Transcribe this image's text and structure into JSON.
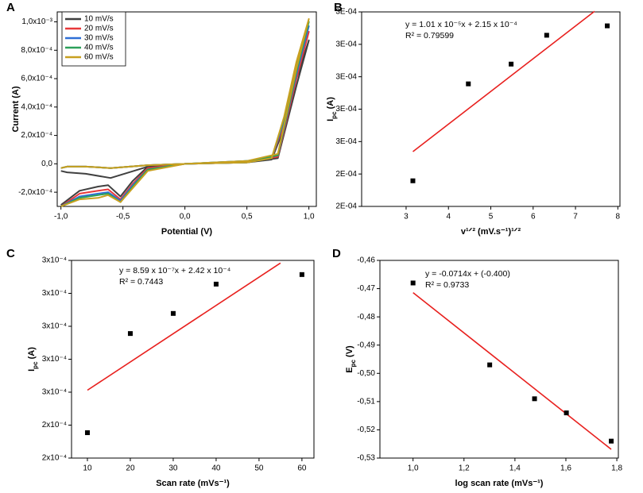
{
  "chart_data": [
    {
      "type": "line",
      "label": "A",
      "xlabel": "Potential (V)",
      "ylabel": "Current (A)",
      "legend": "upper left",
      "x": [
        -1.0,
        -0.95,
        -0.8,
        -0.6,
        -0.3,
        0.0,
        0.5,
        0.7,
        0.8,
        0.9,
        1.0,
        0.9,
        0.75,
        0.5,
        0.0,
        -0.3,
        -0.42,
        -0.52,
        -0.62,
        -0.7,
        -0.85,
        -1.0
      ],
      "series": [
        {
          "name": "10 mV/s",
          "color": "#404040",
          "values": [
            -5e-05,
            -6e-05,
            -7e-05,
            -0.0001,
            -2e-05,
            0.0,
            1e-05,
            3e-05,
            0.00025,
            0.0006,
            0.00087,
            0.00055,
            4e-05,
            1e-05,
            0.0,
            -2e-05,
            -0.00012,
            -0.00023,
            -0.00015,
            -0.00016,
            -0.00019,
            -0.00029
          ]
        },
        {
          "name": "20 mV/s",
          "color": "#e8383a",
          "values": [
            -3e-05,
            -2e-05,
            -2e-05,
            -3e-05,
            -1e-05,
            0.0,
            1e-05,
            4e-05,
            0.00028,
            0.00065,
            0.00093,
            0.0006,
            5e-05,
            1e-05,
            0.0,
            -3e-05,
            -0.00014,
            -0.00025,
            -0.00018,
            -0.00019,
            -0.00021,
            -0.0003
          ]
        },
        {
          "name": "30 mV/s",
          "color": "#2e6fd6",
          "values": [
            -3e-05,
            -2e-05,
            -2e-05,
            -3e-05,
            -1e-05,
            0.0,
            1e-05,
            4e-05,
            0.0003,
            0.00068,
            0.00097,
            0.00063,
            6e-05,
            2e-05,
            0.0,
            -4e-05,
            -0.00015,
            -0.00026,
            -0.0002,
            -0.00021,
            -0.00023,
            -0.0003
          ]
        },
        {
          "name": "40 mV/s",
          "color": "#2ca05a",
          "values": [
            -3e-05,
            -2e-05,
            -2e-05,
            -3e-05,
            -1e-05,
            0.0,
            1e-05,
            4e-05,
            0.00032,
            0.0007,
            0.001,
            0.00065,
            6e-05,
            2e-05,
            0.0,
            -4e-05,
            -0.00016,
            -0.00027,
            -0.00021,
            -0.00022,
            -0.00024,
            -0.0003
          ]
        },
        {
          "name": "60 mV/s",
          "color": "#c8a020",
          "values": [
            -3e-05,
            -2e-05,
            -2e-05,
            -3e-05,
            -1e-05,
            0.0,
            1e-05,
            4e-05,
            0.00033,
            0.00072,
            0.00102,
            0.00067,
            7e-05,
            2e-05,
            0.0,
            -5e-05,
            -0.00017,
            -0.00027,
            -0.00022,
            -0.00024,
            -0.00025,
            -0.0003
          ]
        }
      ],
      "xlim": [
        -1.03,
        1.06
      ],
      "ylim": [
        -0.0003,
        0.00107
      ],
      "xticks": [
        {
          "value": -1.0,
          "label": "-1,0"
        },
        {
          "value": -0.5,
          "label": "-0,5"
        },
        {
          "value": 0.0,
          "label": "0,0"
        },
        {
          "value": 0.5,
          "label": "0,5"
        },
        {
          "value": 1.0,
          "label": "1,0"
        }
      ],
      "yticks": [
        {
          "value": -0.0002,
          "label": "-2,0x10⁻⁴"
        },
        {
          "value": 0.0,
          "label": "0,0"
        },
        {
          "value": 0.0002,
          "label": "2,0x10⁻⁴"
        },
        {
          "value": 0.0004,
          "label": "4,0x10⁻⁴"
        },
        {
          "value": 0.0006,
          "label": "6,0x10⁻⁴"
        },
        {
          "value": 0.0008,
          "label": "8,0x10⁻⁴"
        },
        {
          "value": 0.001,
          "label": "1,0x10⁻³"
        }
      ]
    },
    {
      "type": "scatter",
      "label": "B",
      "xlabel": "v¹ᐟ² (mV.s⁻¹)¹ᐟ²",
      "ylabel": {
        "text": "I",
        "sub": "pc",
        "after": " (A)"
      },
      "annotations": [
        "y = 1.01 x 10⁻⁵x + 2.15 x 10⁻⁴",
        "R² = 0.79599"
      ],
      "points": {
        "color": "#000000",
        "x": [
          3.16,
          4.47,
          5.48,
          6.32,
          7.75
        ],
        "values": [
          0.0002379,
          0.0002678,
          0.0002739,
          0.0002828,
          0.0002857
        ]
      },
      "fit": {
        "color": "#e8201e",
        "x": [
          3.16,
          7.45
        ],
        "values": [
          0.0002469,
          0.0002902
        ]
      },
      "xlim": [
        1.95,
        8.05
      ],
      "ylim": [
        0.00023,
        0.00029
      ],
      "xticks": [
        3,
        4,
        5,
        6,
        7,
        8
      ],
      "yticks": [
        {
          "value": 0.00023,
          "label": "2E-04"
        },
        {
          "value": 0.00024,
          "label": "2E-04"
        },
        {
          "value": 0.00025,
          "label": "3E-04"
        },
        {
          "value": 0.00026,
          "label": "3E-04"
        },
        {
          "value": 0.00027,
          "label": "3E-04"
        },
        {
          "value": 0.00028,
          "label": "3E-04"
        },
        {
          "value": 0.00029,
          "label": "3E-04"
        }
      ]
    },
    {
      "type": "scatter",
      "label": "C",
      "xlabel": "Scan rate (mVs⁻¹)",
      "ylabel": {
        "text": "I",
        "sub": "pc",
        "after": " (A)"
      },
      "annotations": [
        "y = 8.59 x 10⁻⁷x + 2.42 x 10⁻⁴",
        "R² = 0.7443"
      ],
      "points": {
        "color": "#000000",
        "x": [
          10,
          20,
          30,
          40,
          60
        ],
        "values": [
          0.0002377,
          0.0002678,
          0.0002739,
          0.0002828,
          0.0002857
        ]
      },
      "fit": {
        "color": "#e8201e",
        "x": [
          10,
          55
        ],
        "values": [
          0.0002506,
          0.0002892
        ]
      },
      "xlim": [
        6.3,
        62.8
      ],
      "ylim": [
        0.00023,
        0.00029
      ],
      "xticks": [
        10,
        20,
        30,
        40,
        50,
        60
      ],
      "yticks": [
        {
          "value": 0.00023,
          "label": "2x10⁻⁴"
        },
        {
          "value": 0.00024,
          "label": "2x10⁻⁴"
        },
        {
          "value": 0.00025,
          "label": "3x10⁻⁴"
        },
        {
          "value": 0.00026,
          "label": "3x10⁻⁴"
        },
        {
          "value": 0.00027,
          "label": "3x10⁻⁴"
        },
        {
          "value": 0.00028,
          "label": "3x10⁻⁴"
        },
        {
          "value": 0.00029,
          "label": "3x10⁻⁴"
        }
      ]
    },
    {
      "type": "scatter",
      "label": "D",
      "xlabel": "log scan rate (mVs⁻¹)",
      "ylabel": {
        "text": "E",
        "sub": "pc",
        "after": " (V)"
      },
      "annotations": [
        "y = -0.0714x + (-0.400)",
        "R² = 0.9733"
      ],
      "points": {
        "color": "#000000",
        "x": [
          1.0,
          1.301,
          1.477,
          1.602,
          1.778
        ],
        "values": [
          -0.468,
          -0.497,
          -0.509,
          -0.514,
          -0.524
        ]
      },
      "fit": {
        "color": "#e8201e",
        "x": [
          1.0,
          1.778
        ],
        "values": [
          -0.4714,
          -0.5269
        ]
      },
      "xlim": [
        0.87,
        1.806
      ],
      "ylim": [
        -0.53,
        -0.46
      ],
      "xticks": [
        {
          "value": 1.0,
          "label": "1,0"
        },
        {
          "value": 1.2,
          "label": "1,2"
        },
        {
          "value": 1.4,
          "label": "1,4"
        },
        {
          "value": 1.6,
          "label": "1,6"
        },
        {
          "value": 1.8,
          "label": "1,8"
        }
      ],
      "yticks": [
        {
          "value": -0.53,
          "label": "-0,53"
        },
        {
          "value": -0.52,
          "label": "-0,52"
        },
        {
          "value": -0.51,
          "label": "-0,51"
        },
        {
          "value": -0.5,
          "label": "-0,50"
        },
        {
          "value": -0.49,
          "label": "-0,49"
        },
        {
          "value": -0.48,
          "label": "-0,48"
        },
        {
          "value": -0.47,
          "label": "-0,47"
        },
        {
          "value": -0.46,
          "label": "-0,46"
        }
      ]
    }
  ]
}
